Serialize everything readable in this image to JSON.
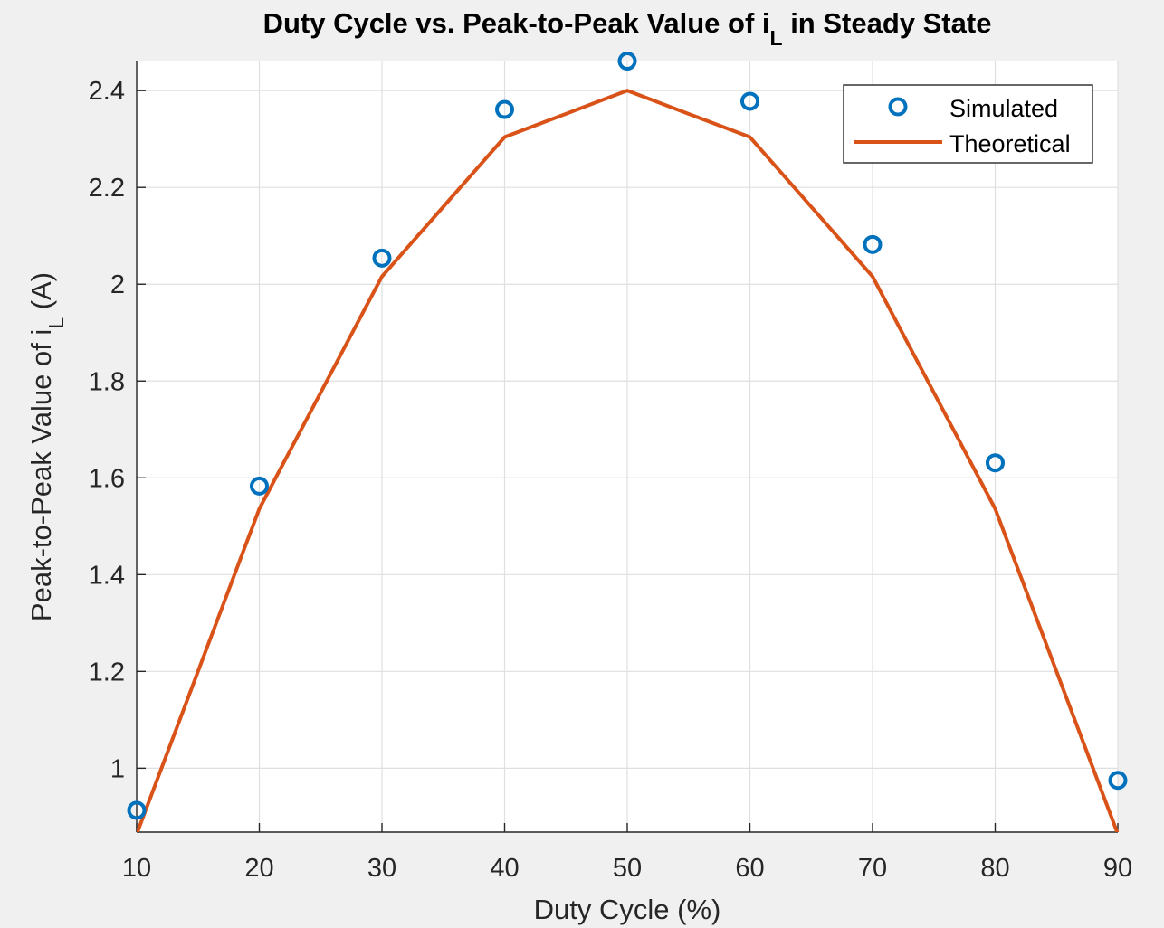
{
  "chart_data": {
    "type": "line",
    "title_main": "Duty Cycle vs. Peak-to-Peak Value of i",
    "title_sub": "L",
    "title_tail": " in Steady State",
    "xlabel": "Duty Cycle (%)",
    "ylabel_main": "Peak-to-Peak Value of i",
    "ylabel_sub": "L",
    "ylabel_tail": " (A)",
    "xlim": [
      10,
      90
    ],
    "ylim": [
      0.868,
      2.462
    ],
    "xticks": [
      10,
      20,
      30,
      40,
      50,
      60,
      70,
      80,
      90
    ],
    "xtick_labels": [
      "10",
      "20",
      "30",
      "40",
      "50",
      "60",
      "70",
      "80",
      "90"
    ],
    "yticks": [
      1.0,
      1.2,
      1.4,
      1.6,
      1.8,
      2.0,
      2.2,
      2.4
    ],
    "ytick_labels": [
      "1",
      "1.2",
      "1.4",
      "1.6",
      "1.8",
      "2",
      "2.2",
      "2.4"
    ],
    "grid": true,
    "legend_position": "top-right",
    "x": [
      10,
      20,
      30,
      40,
      50,
      60,
      70,
      80,
      90
    ],
    "series": [
      {
        "name": "Simulated",
        "style": "markers",
        "color": "#0072bd",
        "values": [
          0.913,
          1.583,
          2.054,
          2.361,
          2.461,
          2.378,
          2.082,
          1.631,
          0.975
        ]
      },
      {
        "name": "Theoretical",
        "style": "line",
        "color": "#d95319",
        "values": [
          0.864,
          1.536,
          2.016,
          2.304,
          2.4,
          2.304,
          2.016,
          1.536,
          0.864
        ]
      }
    ]
  }
}
